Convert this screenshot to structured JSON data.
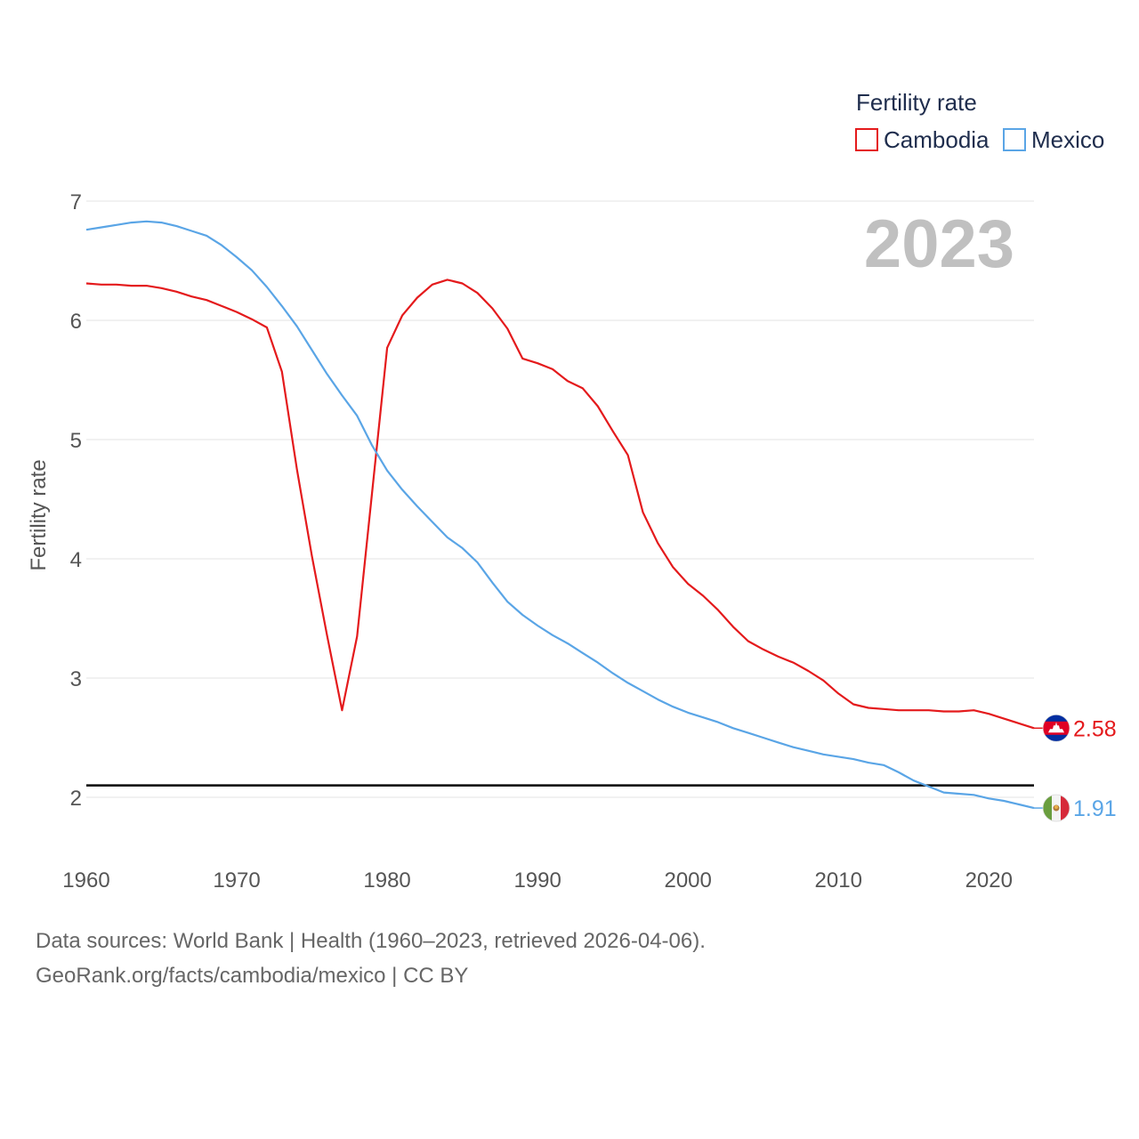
{
  "chart_data": {
    "type": "line",
    "ylabel": "Fertility rate",
    "xlabel": "",
    "year_label": "2023",
    "legend": {
      "title": "Fertility rate",
      "position": "top-right"
    },
    "xlim": [
      1960,
      2023
    ],
    "ylim": [
      1.5,
      7.0
    ],
    "x_ticks": [
      1960,
      1970,
      1980,
      1990,
      2000,
      2010,
      2020
    ],
    "y_ticks": [
      2,
      3,
      4,
      5,
      6,
      7
    ],
    "reference_line": {
      "value": 2.1,
      "color": "#000000"
    },
    "x": [
      1960,
      1961,
      1962,
      1963,
      1964,
      1965,
      1966,
      1967,
      1968,
      1969,
      1970,
      1971,
      1972,
      1973,
      1974,
      1975,
      1976,
      1977,
      1978,
      1979,
      1980,
      1981,
      1982,
      1983,
      1984,
      1985,
      1986,
      1987,
      1988,
      1989,
      1990,
      1991,
      1992,
      1993,
      1994,
      1995,
      1996,
      1997,
      1998,
      1999,
      2000,
      2001,
      2002,
      2003,
      2004,
      2005,
      2006,
      2007,
      2008,
      2009,
      2010,
      2011,
      2012,
      2013,
      2014,
      2015,
      2016,
      2017,
      2018,
      2019,
      2020,
      2021,
      2022,
      2023
    ],
    "series": [
      {
        "name": "Cambodia",
        "color": "#e41a1c",
        "end_label": "2.58",
        "flag": "cambodia",
        "values": [
          6.31,
          6.3,
          6.3,
          6.29,
          6.29,
          6.27,
          6.24,
          6.2,
          6.17,
          6.12,
          6.07,
          6.01,
          5.94,
          5.57,
          4.75,
          4.02,
          3.36,
          2.73,
          3.35,
          4.56,
          5.77,
          6.04,
          6.19,
          6.3,
          6.34,
          6.31,
          6.23,
          6.1,
          5.93,
          5.68,
          5.64,
          5.59,
          5.49,
          5.43,
          5.28,
          5.07,
          4.87,
          4.39,
          4.13,
          3.93,
          3.79,
          3.69,
          3.57,
          3.43,
          3.31,
          3.24,
          3.18,
          3.13,
          3.06,
          2.98,
          2.87,
          2.78,
          2.75,
          2.74,
          2.73,
          2.73,
          2.73,
          2.72,
          2.72,
          2.73,
          2.7,
          2.66,
          2.62,
          2.58
        ]
      },
      {
        "name": "Mexico",
        "color": "#5aa5e6",
        "end_label": "1.91",
        "flag": "mexico",
        "values": [
          6.76,
          6.78,
          6.8,
          6.82,
          6.83,
          6.82,
          6.79,
          6.75,
          6.71,
          6.63,
          6.53,
          6.42,
          6.28,
          6.12,
          5.95,
          5.75,
          5.55,
          5.37,
          5.2,
          4.95,
          4.74,
          4.58,
          4.44,
          4.31,
          4.18,
          4.09,
          3.97,
          3.8,
          3.64,
          3.53,
          3.44,
          3.36,
          3.29,
          3.21,
          3.13,
          3.04,
          2.96,
          2.89,
          2.82,
          2.76,
          2.71,
          2.67,
          2.63,
          2.58,
          2.54,
          2.5,
          2.46,
          2.42,
          2.39,
          2.36,
          2.34,
          2.32,
          2.29,
          2.27,
          2.21,
          2.14,
          2.09,
          2.04,
          2.03,
          2.02,
          1.99,
          1.97,
          1.94,
          1.91
        ]
      }
    ]
  },
  "footer": {
    "line1": "Data sources: World Bank | Health (1960–2023, retrieved 2026-04-06).",
    "line2": "GeoRank.org/facts/cambodia/mexico | CC BY"
  }
}
